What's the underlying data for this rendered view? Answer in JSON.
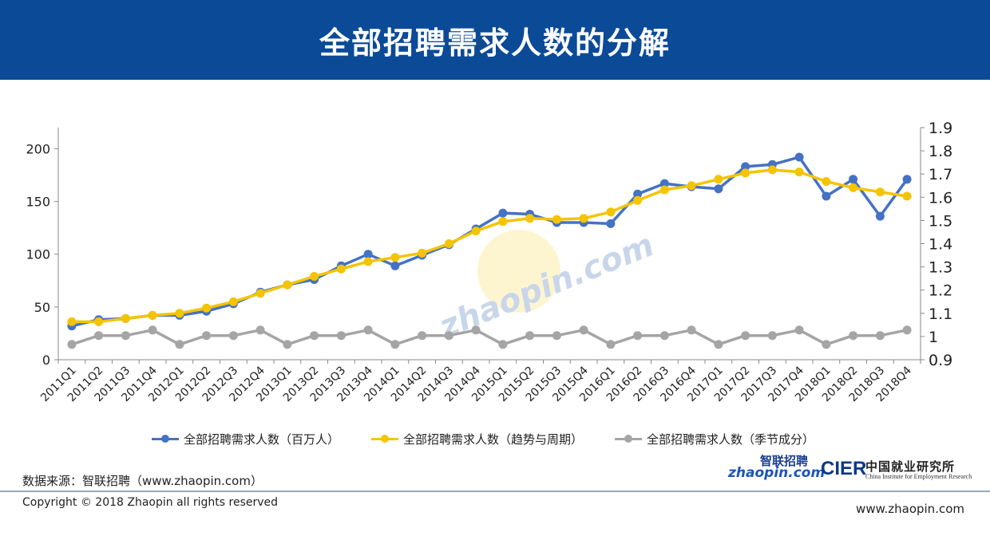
{
  "header": {
    "title": "全部招聘需求人数的分解"
  },
  "chart_data": {
    "type": "line",
    "categories": [
      "2011Q1",
      "2011Q2",
      "2011Q3",
      "2011Q4",
      "2012Q1",
      "2012Q2",
      "2012Q3",
      "2012Q4",
      "2013Q1",
      "2013Q2",
      "2013Q3",
      "2013Q4",
      "2014Q1",
      "2014Q2",
      "2014Q3",
      "2014Q4",
      "2015Q1",
      "2015Q2",
      "2015Q3",
      "2015Q4",
      "2016Q1",
      "2016Q2",
      "2016Q3",
      "2016Q4",
      "2017Q1",
      "2017Q2",
      "2017Q3",
      "2017Q4",
      "2018Q1",
      "2018Q2",
      "2018Q3",
      "2018Q4"
    ],
    "y_left": {
      "ticks": [
        "0",
        "50",
        "100",
        "150",
        "200"
      ],
      "range": [
        0,
        220
      ]
    },
    "y_right": {
      "ticks": [
        "0.9",
        "1",
        "1.1",
        "1.2",
        "1.3",
        "1.4",
        "1.5",
        "1.6",
        "1.7",
        "1.8",
        "1.9"
      ],
      "range": [
        0.9,
        1.9
      ]
    },
    "series": [
      {
        "name": "全部招聘需求人数（百万人）",
        "axis": "left",
        "color": "#4472c4",
        "values": [
          32,
          38,
          39,
          42,
          42,
          46,
          53,
          64,
          71,
          76,
          89,
          100,
          89,
          99,
          109,
          124,
          139,
          138,
          130,
          130,
          129,
          157,
          167,
          164,
          162,
          183,
          185,
          192,
          155,
          171,
          136,
          171
        ]
      },
      {
        "name": "全部招聘需求人数（趋势与周期）",
        "axis": "left",
        "color": "#f5c400",
        "values": [
          36,
          36,
          39,
          42,
          44,
          49,
          55,
          63,
          71,
          79,
          86,
          93,
          97,
          101,
          110,
          122,
          131,
          134,
          133,
          134,
          140,
          151,
          161,
          165,
          171,
          177,
          180,
          178,
          169,
          163,
          159,
          155
        ]
      },
      {
        "name": "全部招聘需求人数（季节成分）",
        "axis": "right",
        "color": "#a5a5a5",
        "values": [
          0.966,
          1.004,
          1.004,
          1.028,
          0.966,
          1.004,
          1.004,
          1.028,
          0.966,
          1.004,
          1.004,
          1.028,
          0.966,
          1.004,
          1.004,
          1.028,
          0.966,
          1.004,
          1.004,
          1.028,
          0.966,
          1.004,
          1.004,
          1.028,
          0.966,
          1.004,
          1.004,
          1.028,
          0.966,
          1.004,
          1.004,
          1.028
        ]
      }
    ],
    "watermark": "zhaopin.com 智联招聘"
  },
  "legend": [
    {
      "label": "全部招聘需求人数（百万人）",
      "color": "#4472c4"
    },
    {
      "label": "全部招聘需求人数（趋势与周期）",
      "color": "#f5c400"
    },
    {
      "label": "全部招聘需求人数（季节成分）",
      "color": "#a5a5a5"
    }
  ],
  "footer": {
    "source": "数据来源：智联招聘（www.zhaopin.com）",
    "copyright": "Copyright © 2018 Zhaopin all rights reserved",
    "website": "www.zhaopin.com",
    "logo_zhaopin_cn": "智联招聘",
    "logo_zhaopin_en": "zhaopin.com",
    "logo_cier_mark": "CIER",
    "logo_cier_cn": "中国就业研究所",
    "logo_cier_en": "China Institute for Employment Research"
  }
}
